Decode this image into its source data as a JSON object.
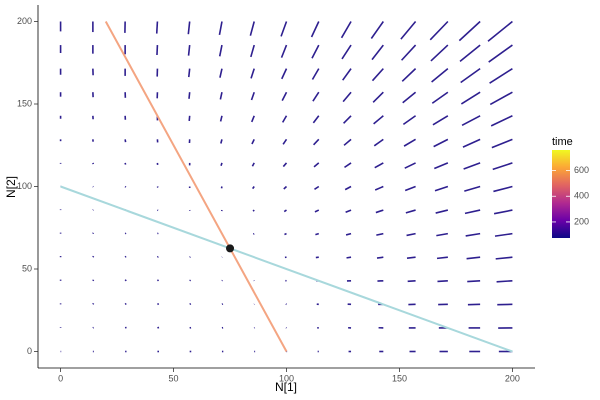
{
  "chart_data": {
    "type": "vector_field",
    "x_label": "N[1]",
    "y_label": "N[2]",
    "xlim": [
      -10,
      210
    ],
    "ylim": [
      -10,
      210
    ],
    "xticks": [
      0,
      50,
      100,
      150,
      200
    ],
    "yticks": [
      0,
      50,
      100,
      150,
      200
    ],
    "segment_color": "#2e1f8f",
    "x": [
      0,
      14.29,
      28.57,
      42.86,
      57.14,
      71.43,
      85.71,
      100,
      114.29,
      128.57,
      142.86,
      157.14,
      171.43,
      185.71,
      200
    ],
    "y": [
      0,
      14.29,
      28.57,
      42.86,
      57.14,
      71.43,
      85.71,
      100,
      114.29,
      128.57,
      142.86,
      157.14,
      171.43,
      185.71,
      200
    ],
    "u": [
      [
        0,
        0.4,
        0.6,
        0.7,
        0.7,
        0.6,
        0.4,
        0,
        -0.5,
        -1.1,
        -1.8,
        -2.7,
        -3.7,
        -4.8,
        -6.0
      ],
      [
        0,
        0.3,
        0.6,
        0.7,
        0.6,
        0.5,
        0.2,
        -0.2,
        -0.7,
        -1.3,
        -2.1,
        -3.0,
        -4.0,
        -5.1,
        -6.3
      ],
      [
        0,
        0.3,
        0.5,
        0.6,
        0.5,
        0.4,
        0.1,
        -0.3,
        -0.9,
        -1.5,
        -2.3,
        -3.2,
        -4.3,
        -5.4,
        -6.7
      ],
      [
        0,
        0.3,
        0.5,
        0.5,
        0.4,
        0.2,
        -0.1,
        -0.5,
        -1.1,
        -1.8,
        -2.6,
        -3.5,
        -4.6,
        -5.7,
        -7.0
      ],
      [
        0,
        0.3,
        0.4,
        0.4,
        0.3,
        0.1,
        -0.2,
        -0.7,
        -1.3,
        -2.0,
        -2.8,
        -3.8,
        -4.8,
        -6.0,
        -7.4
      ],
      [
        0,
        0.2,
        0.4,
        0.4,
        0.2,
        0,
        -0.4,
        -0.9,
        -1.5,
        -2.2,
        -3.1,
        -4.0,
        -5.1,
        -6.4,
        -7.7
      ],
      [
        0,
        0.2,
        0.3,
        0.3,
        0.1,
        -0.1,
        -0.5,
        -1.0,
        -1.7,
        -2.4,
        -3.3,
        -4.3,
        -5.4,
        -6.7,
        -8.1
      ],
      [
        0,
        0.2,
        0.3,
        0.2,
        0,
        -0.2,
        -0.7,
        -1.2,
        -1.9,
        -2.6,
        -3.6,
        -4.6,
        -5.7,
        -7.0,
        -8.4
      ],
      [
        0,
        0.2,
        0.2,
        0.1,
        0,
        -0.4,
        -0.8,
        -1.4,
        -2.1,
        -2.9,
        -3.8,
        -4.8,
        -6.0,
        -7.3,
        -8.7
      ],
      [
        0,
        0.1,
        0.2,
        0.1,
        -0.1,
        -0.5,
        -1.0,
        -1.5,
        -2.3,
        -3.1,
        -4.0,
        -5.1,
        -6.3,
        -7.6,
        -9.1
      ],
      [
        0,
        0.1,
        0.1,
        0,
        -0.2,
        -0.6,
        -1.1,
        -1.7,
        -2.4,
        -3.3,
        -4.3,
        -5.4,
        -6.6,
        -8.0,
        -9.4
      ],
      [
        0,
        0.1,
        0.1,
        -0.1,
        -0.3,
        -0.7,
        -1.2,
        -1.9,
        -2.6,
        -3.5,
        -4.5,
        -5.7,
        -6.9,
        -8.3,
        -9.8
      ],
      [
        0,
        0.1,
        0,
        -0.1,
        -0.4,
        -0.9,
        -1.4,
        -2.1,
        -2.8,
        -3.7,
        -4.8,
        -5.9,
        -7.2,
        -8.6,
        -10.1
      ],
      [
        0,
        0,
        0,
        -0.2,
        -0.5,
        -1.0,
        -1.5,
        -2.2,
        -3.0,
        -4.0,
        -5.0,
        -6.2,
        -7.5,
        -8.9,
        -10.5
      ],
      [
        0,
        0,
        -0.1,
        -0.3,
        -0.6,
        -1.1,
        -1.7,
        -2.4,
        -3.2,
        -4.2,
        -5.3,
        -6.5,
        -7.8,
        -9.2,
        -10.8
      ]
    ],
    "v": [
      [
        0,
        0,
        0,
        0,
        0,
        0,
        0,
        0,
        0,
        0,
        0,
        0,
        0,
        0,
        0
      ],
      [
        0.4,
        0.3,
        0.3,
        0.3,
        0.2,
        0.2,
        0.2,
        0.2,
        0.1,
        0.1,
        0.1,
        0,
        0,
        0,
        -0.1
      ],
      [
        0.6,
        0.6,
        0.5,
        0.4,
        0.4,
        0.3,
        0.2,
        0.2,
        0.1,
        0.1,
        0,
        -0.1,
        -0.1,
        -0.2,
        -0.2
      ],
      [
        0.7,
        0.6,
        0.6,
        0.5,
        0.4,
        0.3,
        0.2,
        0.1,
        0,
        -0.1,
        -0.2,
        -0.3,
        -0.4,
        -0.5,
        -0.6
      ],
      [
        0.7,
        0.6,
        0.5,
        0.4,
        0.2,
        0.1,
        0,
        -0.1,
        -0.2,
        -0.4,
        -0.5,
        -0.6,
        -0.7,
        -0.9,
        -1.0
      ],
      [
        0.6,
        0.5,
        0.3,
        0.2,
        0,
        -0.2,
        -0.3,
        -0.5,
        -0.6,
        -0.8,
        -0.9,
        -1.1,
        -1.2,
        -1.4,
        -1.5
      ],
      [
        0.4,
        0.2,
        0,
        -0.2,
        -0.4,
        -0.6,
        -0.7,
        -0.9,
        -1.1,
        -1.3,
        -1.5,
        -1.7,
        -1.8,
        -2.0,
        -2.2
      ],
      [
        0,
        -0.2,
        -0.4,
        -0.6,
        -0.9,
        -1.1,
        -1.3,
        -1.5,
        -1.7,
        -1.9,
        -2.1,
        -2.4,
        -2.6,
        -2.8,
        -3.0
      ],
      [
        -0.5,
        -0.7,
        -1.0,
        -1.2,
        -1.5,
        -1.7,
        -2.0,
        -2.2,
        -2.4,
        -2.7,
        -2.9,
        -3.2,
        -3.4,
        -3.7,
        -3.9
      ],
      [
        -1.1,
        -1.4,
        -1.7,
        -1.9,
        -2.2,
        -2.5,
        -2.8,
        -3.0,
        -3.3,
        -3.6,
        -3.9,
        -4.1,
        -4.4,
        -4.7,
        -5.0
      ],
      [
        -1.8,
        -2.1,
        -2.4,
        -2.8,
        -3.1,
        -3.4,
        -3.7,
        -4.0,
        -4.3,
        -4.6,
        -4.9,
        -5.2,
        -5.5,
        -5.8,
        -6.1
      ],
      [
        -2.7,
        -3.0,
        -3.4,
        -3.7,
        -4.0,
        -4.4,
        -4.7,
        -5.1,
        -5.4,
        -5.7,
        -6.1,
        -6.4,
        -6.7,
        -7.1,
        -7.4
      ],
      [
        -3.7,
        -4.0,
        -4.4,
        -4.8,
        -5.1,
        -5.5,
        -5.9,
        -6.2,
        -6.6,
        -7.0,
        -7.3,
        -7.7,
        -8.1,
        -8.4,
        -8.8
      ],
      [
        -4.8,
        -5.2,
        -5.6,
        -6.0,
        -6.4,
        -6.8,
        -7.2,
        -7.6,
        -8.0,
        -8.4,
        -8.8,
        -9.2,
        -9.6,
        -9.9,
        -10.3
      ],
      [
        -6.0,
        -6.4,
        -6.9,
        -7.3,
        -7.7,
        -8.1,
        -8.6,
        -9.0,
        -9.4,
        -9.9,
        -10.3,
        -10.7,
        -11.1,
        -11.6,
        -12.0
      ]
    ],
    "lines": [
      {
        "color": "#f4a582",
        "x": [
          20,
          100
        ],
        "y": [
          200,
          0
        ]
      },
      {
        "color": "#a8d8dc",
        "x": [
          0,
          200
        ],
        "y": [
          100,
          0
        ]
      }
    ],
    "point": {
      "x": 75,
      "y": 62.5,
      "color": "#1a1a1a"
    },
    "color_scale": {
      "title": "time",
      "lim": [
        75,
        760
      ],
      "ticks": [
        200,
        400,
        600
      ],
      "colors": [
        "#0d0887",
        "#6a00a8",
        "#b12a90",
        "#e16462",
        "#fca636",
        "#f0f921"
      ]
    }
  }
}
